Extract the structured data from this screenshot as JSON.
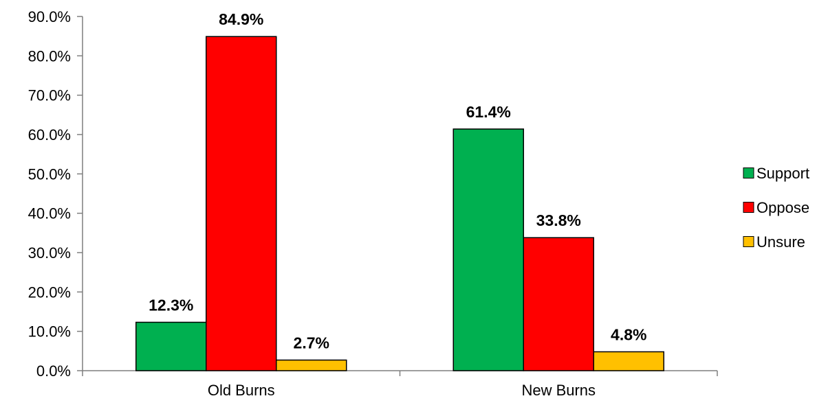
{
  "chart_data": {
    "type": "bar",
    "title": "",
    "xlabel": "",
    "ylabel": "",
    "categories": [
      "Old Burns",
      "New Burns"
    ],
    "series": [
      {
        "name": "Support",
        "values": [
          12.3,
          61.4
        ],
        "labels": [
          "12.3%",
          "61.4%"
        ],
        "color": "#00b050"
      },
      {
        "name": "Oppose",
        "values": [
          84.9,
          33.8
        ],
        "labels": [
          "84.9%",
          "33.8%"
        ],
        "color": "#ff0000"
      },
      {
        "name": "Unsure",
        "values": [
          2.7,
          4.8
        ],
        "labels": [
          "2.7%",
          "4.8%"
        ],
        "color": "#ffc000"
      }
    ],
    "ylim": [
      0,
      90
    ],
    "yticks": [
      0,
      10,
      20,
      30,
      40,
      50,
      60,
      70,
      80,
      90
    ],
    "ytick_labels": [
      "0.0%",
      "10.0%",
      "20.0%",
      "30.0%",
      "40.0%",
      "50.0%",
      "60.0%",
      "70.0%",
      "80.0%",
      "90.0%"
    ],
    "grid": false,
    "legend": {
      "position": "right"
    },
    "colors": {
      "axis": "#7f7f7f",
      "bar_outline": "#000000"
    }
  }
}
